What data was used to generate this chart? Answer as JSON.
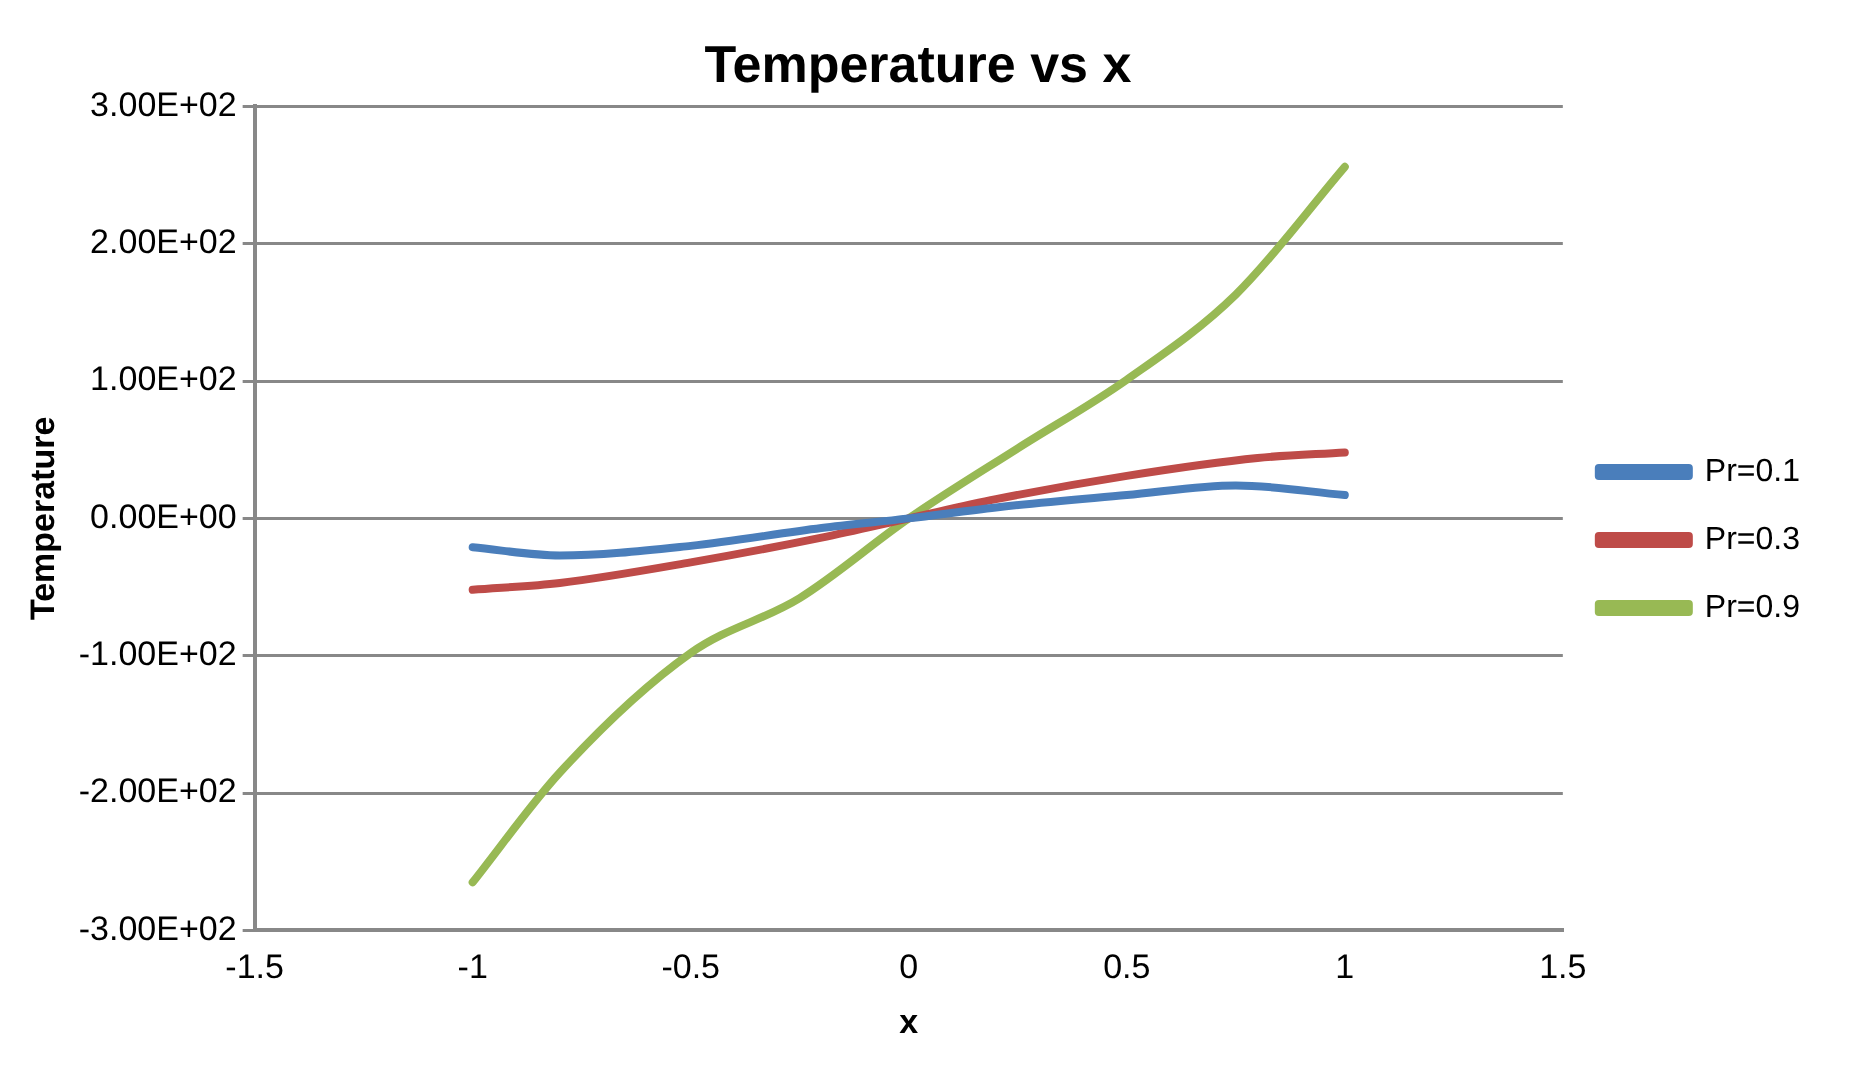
{
  "chart_data": {
    "type": "line",
    "title": "Temperature vs x",
    "xlabel": "x",
    "ylabel": "Temperature",
    "xlim": [
      -1.5,
      1.5
    ],
    "xticks": [
      -1.5,
      -1,
      -0.5,
      0,
      0.5,
      1,
      1.5
    ],
    "ylim": [
      -300,
      300
    ],
    "yticks": [
      {
        "value": -300,
        "label": "-3.00E+02"
      },
      {
        "value": -200,
        "label": "-2.00E+02"
      },
      {
        "value": -100,
        "label": "-1.00E+02"
      },
      {
        "value": 0,
        "label": "0.00E+00"
      },
      {
        "value": 100,
        "label": "1.00E+02"
      },
      {
        "value": 200,
        "label": "2.00E+02"
      },
      {
        "value": 300,
        "label": "3.00E+02"
      }
    ],
    "grid": "y",
    "legend": "right",
    "marker": "none",
    "line_style": "solid",
    "series": [
      {
        "name": "Pr=0.1",
        "color": "#4a7ebb",
        "x": [
          -1,
          -0.8,
          -0.5,
          -0.2,
          0,
          0.2,
          0.5,
          0.75,
          1
        ],
        "values": [
          -21,
          -27,
          -20,
          -7,
          0,
          8,
          17,
          24,
          17
        ]
      },
      {
        "name": "Pr=0.3",
        "color": "#be4b48",
        "x": [
          -1,
          -0.8,
          -0.5,
          -0.2,
          0,
          0.2,
          0.5,
          0.8,
          1
        ],
        "values": [
          -52,
          -47,
          -32,
          -14,
          0,
          14,
          31,
          44,
          48
        ]
      },
      {
        "name": "Pr=0.9",
        "color": "#98b954",
        "x": [
          -1,
          -0.8,
          -0.5,
          -0.25,
          0,
          0.25,
          0.5,
          0.75,
          1
        ],
        "values": [
          -265,
          -185,
          -98,
          -58,
          0,
          51,
          101,
          163,
          256
        ]
      }
    ]
  }
}
